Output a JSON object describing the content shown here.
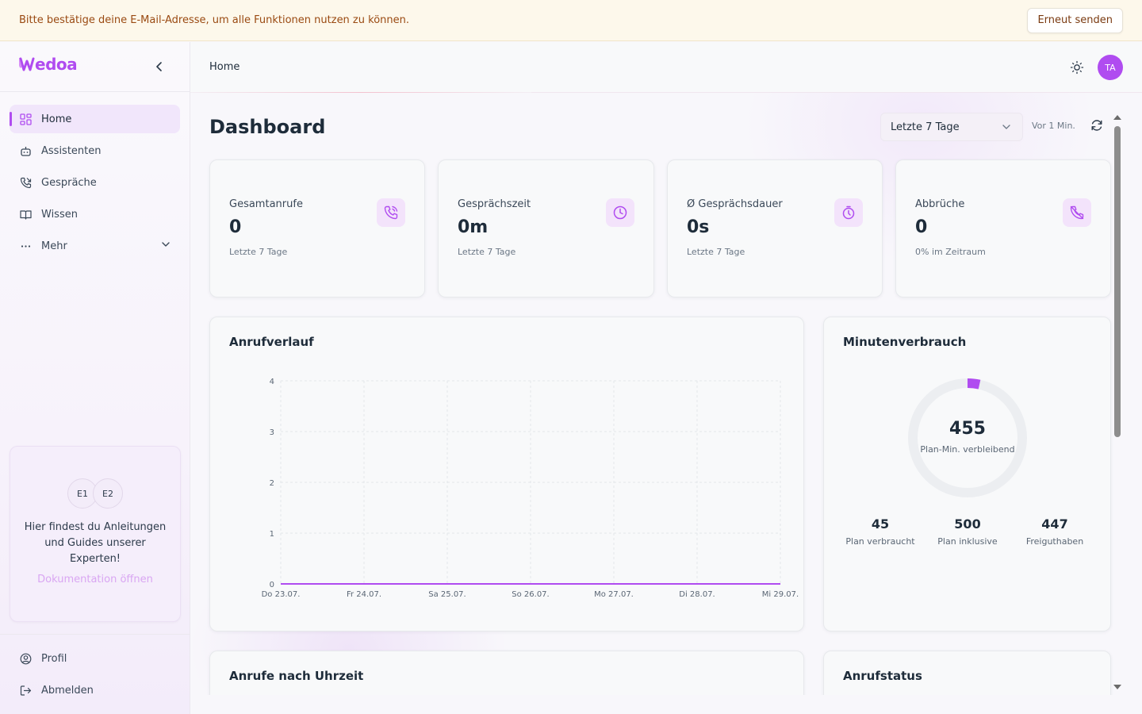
{
  "banner": {
    "text": "Bitte bestätige deine E-Mail-Adresse, um alle Funktionen nutzen zu können.",
    "button": "Erneut senden"
  },
  "brand": {
    "logo_text": "Wedoa",
    "color": "#b04cf0"
  },
  "sidebar": {
    "items": [
      {
        "label": "Home",
        "icon": "grid-icon",
        "active": true
      },
      {
        "label": "Assistenten",
        "icon": "robot-icon"
      },
      {
        "label": "Gespräche",
        "icon": "phone-icon"
      },
      {
        "label": "Wissen",
        "icon": "book-icon"
      },
      {
        "label": "Mehr",
        "icon": "more-icon"
      }
    ],
    "help": {
      "avatars": [
        "E1",
        "E2"
      ],
      "text": "Hier findest du Anleitungen und Guides unserer Experten!",
      "link": "Dokumentation öffnen"
    },
    "bottom": [
      {
        "label": "Profil",
        "icon": "user-circle-icon"
      },
      {
        "label": "Abmelden",
        "icon": "logout-icon"
      }
    ]
  },
  "header": {
    "breadcrumb": "Home",
    "user_initials": "TA"
  },
  "dashboard": {
    "title": "Dashboard",
    "range": "Letzte 7 Tage",
    "updated": "Vor 1 Min.",
    "stats": [
      {
        "label": "Gesamtanrufe",
        "value": "0",
        "sub": "Letzte 7 Tage",
        "icon": "phone-call-icon"
      },
      {
        "label": "Gesprächszeit",
        "value": "0m",
        "sub": "Letzte 7 Tage",
        "icon": "clock-icon"
      },
      {
        "label": "Ø Gesprächsdauer",
        "value": "0s",
        "sub": "Letzte 7 Tage",
        "icon": "stopwatch-icon"
      },
      {
        "label": "Abbrüche",
        "value": "0",
        "sub": "0% im Zeitraum",
        "icon": "phone-missed-icon"
      }
    ],
    "call_history_title": "Anrufverlauf",
    "minutes": {
      "title": "Minutenverbrauch",
      "remaining": "455",
      "remaining_label": "Plan-Min. verbleibend",
      "used_fraction": 0.09,
      "stats": [
        {
          "value": "45",
          "label": "Plan verbraucht"
        },
        {
          "value": "500",
          "label": "Plan inklusive"
        },
        {
          "value": "447",
          "label": "Freiguthaben"
        }
      ]
    },
    "hourly_title": "Anrufe nach Uhrzeit",
    "status_title": "Anrufstatus"
  },
  "chart_data": {
    "type": "line",
    "title": "Anrufverlauf",
    "categories": [
      "Do 23.07.",
      "Fr 24.07.",
      "Sa 25.07.",
      "So 26.07.",
      "Mo 27.07.",
      "Di 28.07.",
      "Mi 29.07."
    ],
    "series": [
      {
        "values": [
          0,
          0,
          0,
          0,
          0,
          0,
          0
        ]
      }
    ],
    "yticks": [
      "0",
      "1",
      "2",
      "3",
      "4"
    ],
    "ylim": [
      0,
      4
    ],
    "grid": true,
    "line_color": "#b04cf0"
  }
}
